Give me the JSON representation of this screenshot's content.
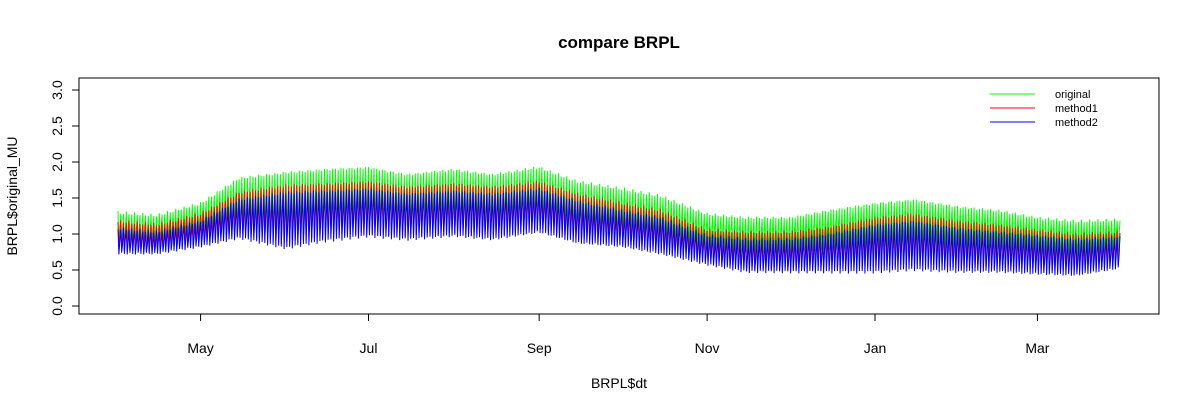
{
  "chart_data": {
    "type": "line",
    "title": "compare BRPL",
    "xlabel": "BRPL$dt",
    "ylabel": "BRPL$original_MU",
    "ylim": [
      0,
      3.0
    ],
    "yticks": [
      "0.0",
      "0.5",
      "1.0",
      "1.5",
      "2.0",
      "2.5",
      "3.0"
    ],
    "x_ticks": [
      "May",
      "Jul",
      "Sep",
      "Nov",
      "Jan",
      "Mar"
    ],
    "x_tick_dates": [
      "2018-05-01",
      "2018-07-01",
      "2018-09-01",
      "2018-11-01",
      "2019-01-01",
      "2019-03-01"
    ],
    "x_range": [
      "2018-04-01",
      "2019-03-31"
    ],
    "grid": false,
    "legend_position": "top-right",
    "series": [
      {
        "name": "original",
        "color": "#00ff00",
        "x": [
          "2018-04-01",
          "2018-04-15",
          "2018-05-01",
          "2018-05-15",
          "2018-06-01",
          "2018-06-15",
          "2018-07-01",
          "2018-07-15",
          "2018-08-01",
          "2018-08-15",
          "2018-09-01",
          "2018-09-15",
          "2018-10-01",
          "2018-10-15",
          "2018-11-01",
          "2018-11-15",
          "2018-12-01",
          "2018-12-15",
          "2019-01-01",
          "2019-01-15",
          "2019-02-01",
          "2019-02-15",
          "2019-03-01",
          "2019-03-15",
          "2019-03-31"
        ],
        "high": [
          1.32,
          1.28,
          1.45,
          1.8,
          1.88,
          1.92,
          1.95,
          1.85,
          1.92,
          1.85,
          1.95,
          1.75,
          1.65,
          1.55,
          1.3,
          1.25,
          1.25,
          1.35,
          1.45,
          1.5,
          1.4,
          1.35,
          1.25,
          1.2,
          1.22
        ],
        "low": [
          0.8,
          0.8,
          0.95,
          1.05,
          0.95,
          1.05,
          1.1,
          1.05,
          1.1,
          1.05,
          1.15,
          1.0,
          0.95,
          0.85,
          0.75,
          0.7,
          0.7,
          0.75,
          0.75,
          0.8,
          0.75,
          0.75,
          0.7,
          0.65,
          0.75
        ]
      },
      {
        "name": "method1",
        "color": "#ff0000",
        "x": [
          "2018-04-01",
          "2018-04-15",
          "2018-05-01",
          "2018-05-15",
          "2018-06-01",
          "2018-06-15",
          "2018-07-01",
          "2018-07-15",
          "2018-08-01",
          "2018-08-15",
          "2018-09-01",
          "2018-09-15",
          "2018-10-01",
          "2018-10-15",
          "2018-11-01",
          "2018-11-15",
          "2018-12-01",
          "2018-12-15",
          "2019-01-01",
          "2019-01-15",
          "2019-02-01",
          "2019-02-15",
          "2019-03-01",
          "2019-03-15",
          "2019-03-31"
        ],
        "high": [
          1.2,
          1.15,
          1.3,
          1.6,
          1.7,
          1.72,
          1.75,
          1.68,
          1.72,
          1.68,
          1.75,
          1.58,
          1.45,
          1.35,
          1.08,
          1.05,
          1.05,
          1.12,
          1.25,
          1.3,
          1.2,
          1.15,
          1.08,
          1.02,
          1.05
        ],
        "low": [
          0.75,
          0.75,
          0.88,
          0.98,
          0.85,
          0.95,
          1.0,
          0.95,
          1.0,
          0.95,
          1.05,
          0.9,
          0.85,
          0.75,
          0.6,
          0.5,
          0.5,
          0.5,
          0.52,
          0.55,
          0.5,
          0.5,
          0.48,
          0.45,
          0.55
        ]
      },
      {
        "name": "method2",
        "color": "#0000ff",
        "x": [
          "2018-04-01",
          "2018-04-15",
          "2018-05-01",
          "2018-05-15",
          "2018-06-01",
          "2018-06-15",
          "2018-07-01",
          "2018-07-15",
          "2018-08-01",
          "2018-08-15",
          "2018-09-01",
          "2018-09-15",
          "2018-10-01",
          "2018-10-15",
          "2018-11-01",
          "2018-11-15",
          "2018-12-01",
          "2018-12-15",
          "2019-01-01",
          "2019-01-15",
          "2019-02-01",
          "2019-02-15",
          "2019-03-01",
          "2019-03-15",
          "2019-03-31"
        ],
        "high": [
          1.1,
          1.05,
          1.2,
          1.5,
          1.6,
          1.62,
          1.65,
          1.58,
          1.62,
          1.58,
          1.65,
          1.48,
          1.35,
          1.25,
          1.0,
          0.95,
          0.95,
          1.02,
          1.15,
          1.2,
          1.1,
          1.05,
          1.0,
          0.95,
          0.98
        ],
        "low": [
          0.7,
          0.7,
          0.8,
          0.92,
          0.78,
          0.88,
          0.95,
          0.9,
          0.95,
          0.9,
          1.0,
          0.85,
          0.8,
          0.7,
          0.55,
          0.45,
          0.45,
          0.45,
          0.45,
          0.48,
          0.45,
          0.45,
          0.42,
          0.4,
          0.5
        ]
      }
    ]
  }
}
